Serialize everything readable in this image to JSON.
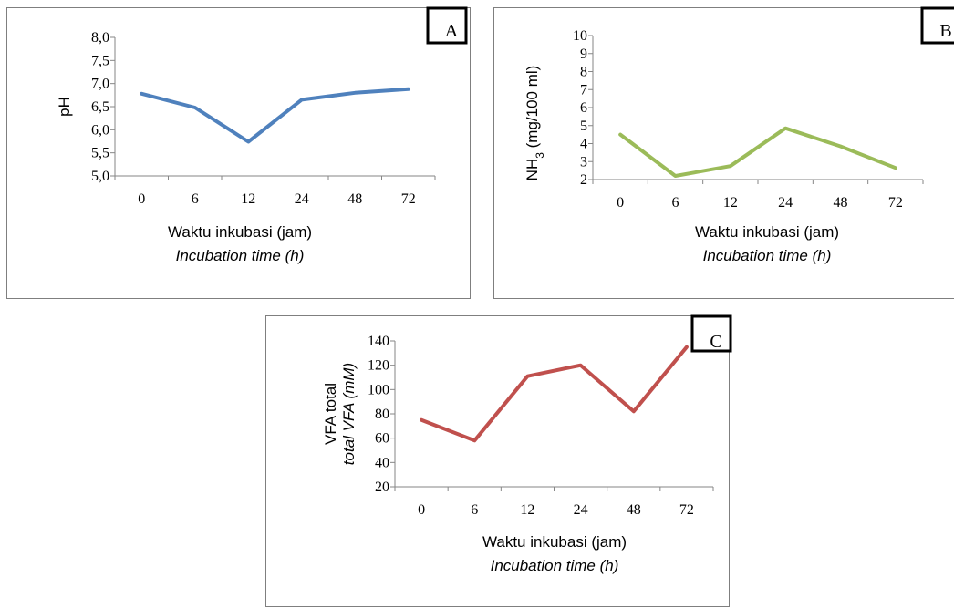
{
  "chart_data": [
    {
      "type": "line",
      "panel_label": "A",
      "categories": [
        "0",
        "6",
        "12",
        "24",
        "48",
        "72"
      ],
      "series": [
        {
          "values": [
            6.78,
            6.48,
            5.74,
            6.65,
            6.8,
            6.88
          ],
          "color": "#4f81bd"
        }
      ],
      "ylabel_lines": [
        "pH"
      ],
      "xlabel": "Waktu inkubasi (jam)",
      "xlabel_en": "Incubation time (h)",
      "ylim": [
        5.0,
        8.0
      ],
      "y_ticks": [
        "5,0",
        "5,5",
        "6,0",
        "6,5",
        "7,0",
        "7,5",
        "8,0"
      ],
      "y_tick_values": [
        5.0,
        5.5,
        6.0,
        6.5,
        7.0,
        7.5,
        8.0
      ],
      "grid": false,
      "legend": "none"
    },
    {
      "type": "line",
      "panel_label": "B",
      "categories": [
        "0",
        "6",
        "12",
        "24",
        "48",
        "72"
      ],
      "series": [
        {
          "values": [
            4.5,
            2.2,
            2.75,
            4.85,
            3.85,
            2.65
          ],
          "color": "#9bbb59"
        }
      ],
      "ylabel_lines": [
        "NH3 (mg/100 ml)"
      ],
      "xlabel": "Waktu inkubasi (jam)",
      "xlabel_en": "Incubation time (h)",
      "ylim": [
        2,
        10
      ],
      "y_ticks": [
        "2",
        "3",
        "4",
        "5",
        "6",
        "7",
        "8",
        "9",
        "10"
      ],
      "y_tick_values": [
        2,
        3,
        4,
        5,
        6,
        7,
        8,
        9,
        10
      ],
      "grid": false,
      "legend": "none"
    },
    {
      "type": "line",
      "panel_label": "C",
      "categories": [
        "0",
        "6",
        "12",
        "24",
        "48",
        "72"
      ],
      "series": [
        {
          "values": [
            75,
            58,
            111,
            120,
            82,
            135
          ],
          "color": "#c0504d"
        }
      ],
      "ylabel_lines": [
        "VFA total",
        "total VFA (mM)"
      ],
      "xlabel": "Waktu inkubasi (jam)",
      "xlabel_en": "Incubation time (h)",
      "ylim": [
        20,
        140
      ],
      "y_ticks": [
        "20",
        "40",
        "60",
        "80",
        "100",
        "120",
        "140"
      ],
      "y_tick_values": [
        20,
        40,
        60,
        80,
        100,
        120,
        140
      ],
      "grid": false,
      "legend": "none"
    }
  ]
}
